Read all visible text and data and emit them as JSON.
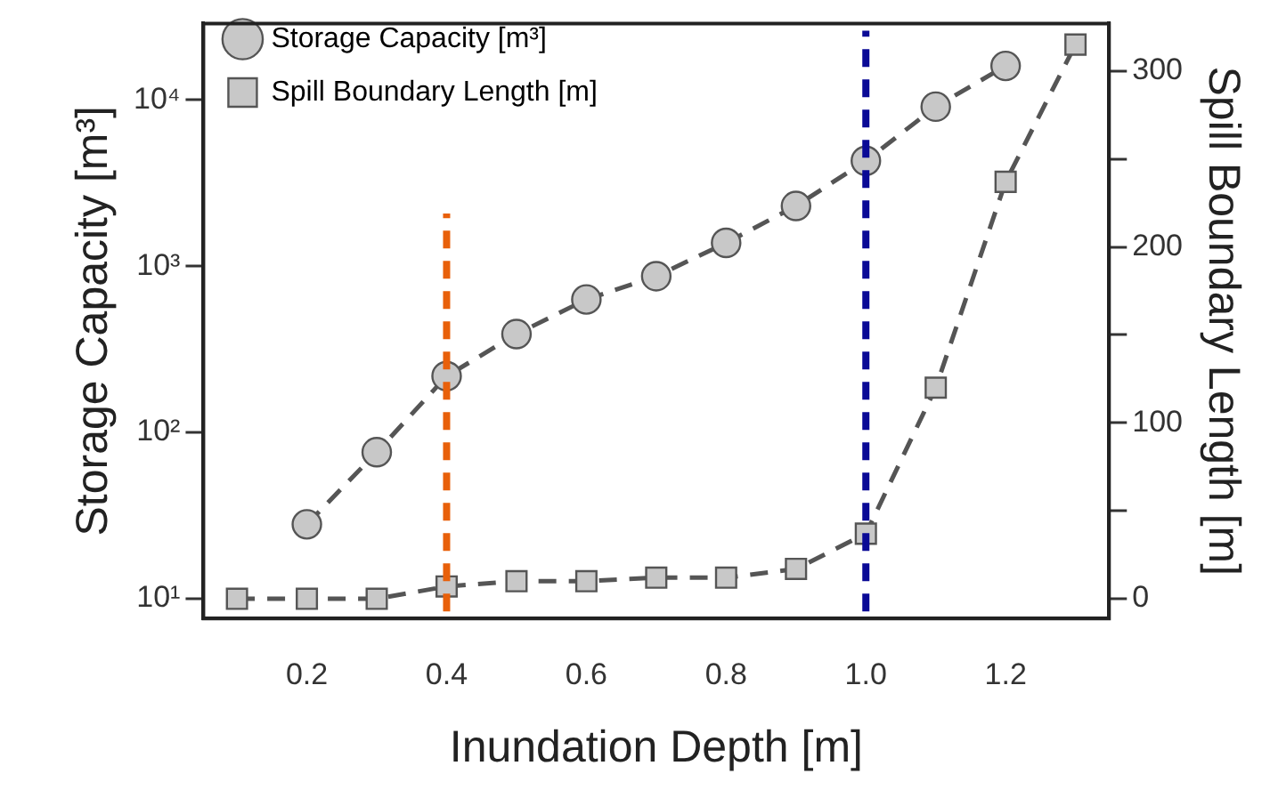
{
  "chart_data": {
    "type": "line",
    "xlabel": "Inundation Depth [m]",
    "ylabel": "Storage Capacity [m³]",
    "y2label": "Spill Boundary Length [m]",
    "x": [
      0.1,
      0.2,
      0.3,
      0.4,
      0.5,
      0.6,
      0.7,
      0.8,
      0.9,
      1.0,
      1.1,
      1.2,
      1.3
    ],
    "series": [
      {
        "name": "Storage Capacity [m³]",
        "color": "#c8c8c8",
        "marker": "circle",
        "values": [
          null,
          28,
          76,
          218,
          390,
          630,
          870,
          1380,
          2300,
          4300,
          9100,
          16000,
          null
        ]
      },
      {
        "name": "Spill Boundary Length [m]",
        "color": "#c8c8c8",
        "marker": "square",
        "axis": "y2",
        "values": [
          0,
          0,
          0,
          7,
          10,
          10,
          12,
          12,
          17,
          37,
          120,
          237,
          315
        ]
      }
    ],
    "line_style": "dashed",
    "log": "y",
    "grid": false,
    "legend": "top left",
    "xlim": [
      0.052,
      1.348
    ],
    "xticks": [
      0.2,
      0.4,
      0.6,
      0.8,
      {
        "value": 1.0,
        "label": "1.0"
      },
      1.2
    ],
    "ylim": [
      7.6,
      28800
    ],
    "yticks": [
      {
        "value": 10,
        "label": "10¹"
      },
      {
        "value": 100,
        "label": "10²"
      },
      {
        "value": 1000,
        "label": "10³"
      },
      {
        "value": 10000,
        "label": "10⁴"
      }
    ],
    "y2lim": [
      -11.2,
      327
    ],
    "y2ticks": [
      0,
      {
        "value": 50,
        "label": null
      },
      100,
      {
        "value": 150,
        "label": null
      },
      200,
      {
        "value": 250,
        "label": null
      },
      300
    ],
    "ref_lines": [
      {
        "axis": "x",
        "value": 0.4,
        "color": "#e8600a",
        "line_style": "dashed"
      },
      {
        "axis": "x",
        "value": 1.0,
        "color": "#0a0a96",
        "line_style": "dashed"
      }
    ]
  }
}
